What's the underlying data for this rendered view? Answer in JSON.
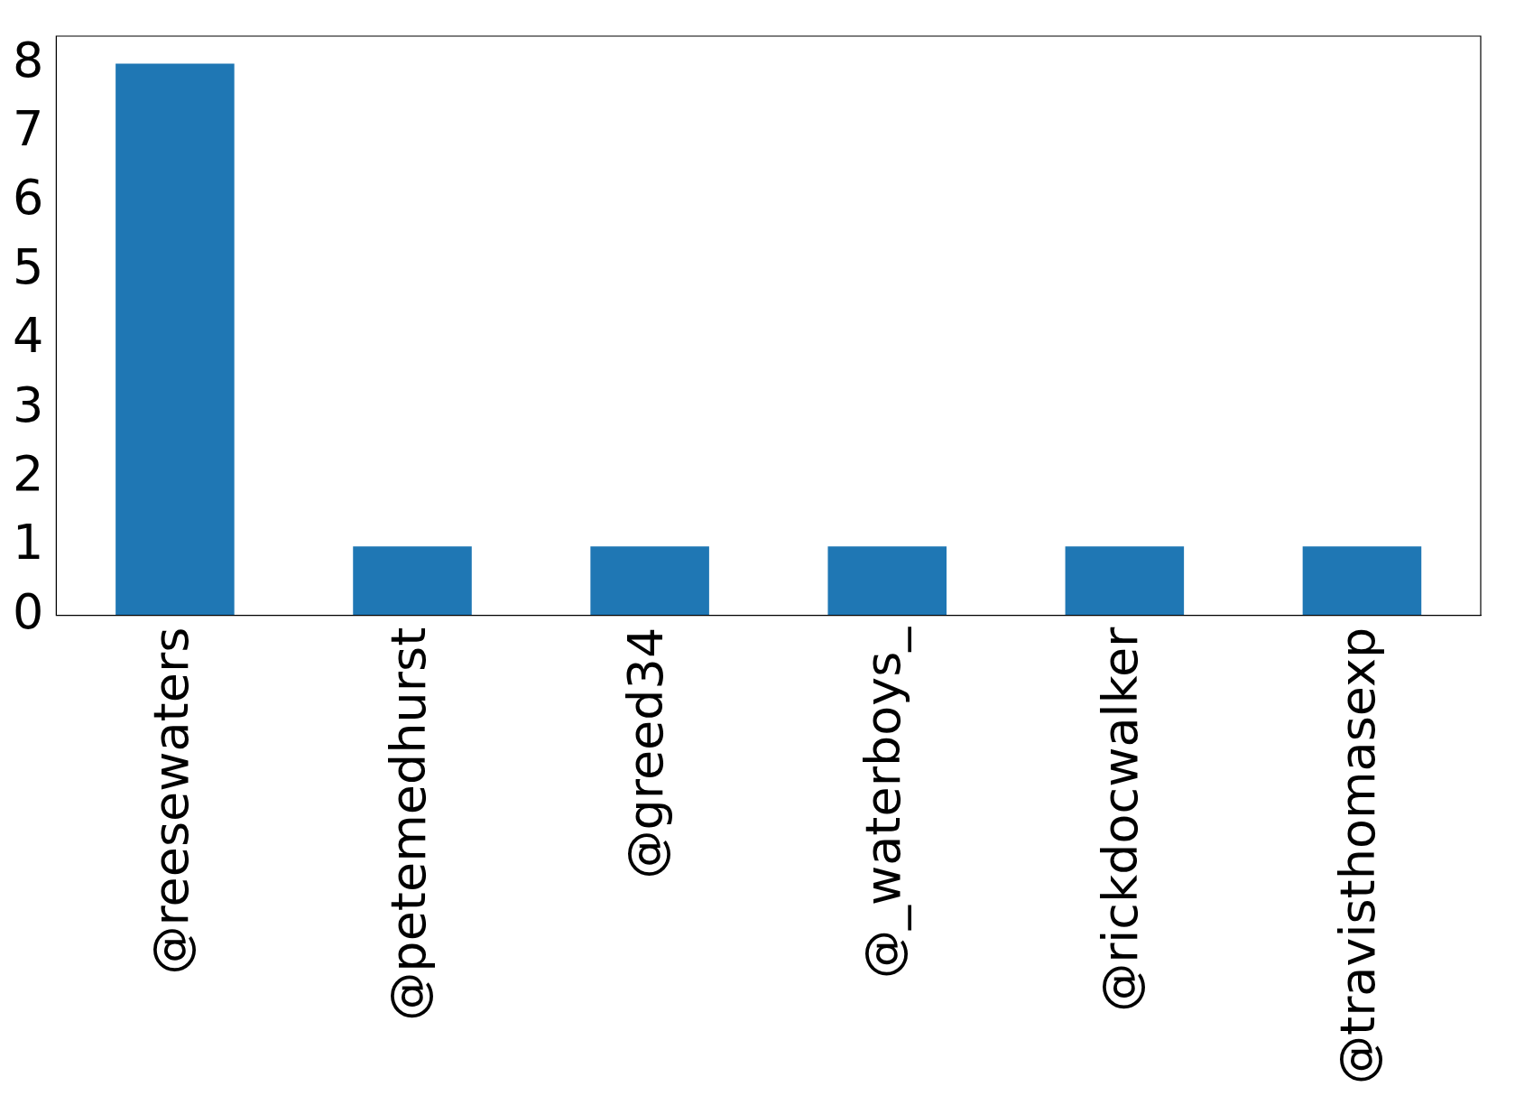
{
  "chart_data": {
    "type": "bar",
    "categories": [
      "@reesewaters",
      "@petemedhurst",
      "@greed34",
      "@_waterboys_",
      "@rickdocwalker",
      "@travisthomasexp"
    ],
    "values": [
      8,
      1,
      1,
      1,
      1,
      1
    ],
    "color": "#1f77b4",
    "ylim": [
      0,
      8.4
    ],
    "yticks": [
      0,
      1,
      2,
      3,
      4,
      5,
      6,
      7,
      8
    ],
    "grid": false,
    "legend": false
  }
}
